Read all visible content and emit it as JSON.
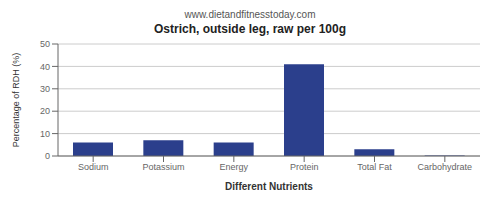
{
  "chart_data": {
    "type": "bar",
    "title": "Ostrich, outside leg, raw per 100g",
    "subtitle": "www.dietandfitnesstoday.com",
    "xlabel": "Different Nutrients",
    "ylabel": "Percentage of RDH (%)",
    "categories": [
      "Sodium",
      "Potassium",
      "Energy",
      "Protein",
      "Total Fat",
      "Carbohydrate"
    ],
    "values": [
      6,
      7,
      6,
      41,
      3,
      0.2
    ],
    "color": "#2b3f8c",
    "ylim": [
      0,
      50
    ],
    "yticks": [
      0,
      10,
      20,
      30,
      40,
      50
    ],
    "grid": true
  }
}
